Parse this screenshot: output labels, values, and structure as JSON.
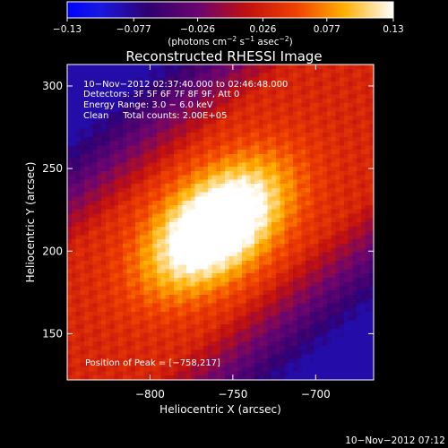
{
  "chart_data": {
    "type": "heatmap",
    "title": "Reconstructed RHESSI Image",
    "xlabel": "Heliocentric X (arcsec)",
    "ylabel": "Heliocentric Y (arcsec)",
    "xlim": [
      -850,
      -665
    ],
    "ylim": [
      122,
      313
    ],
    "x_ticks": [
      -800,
      -750,
      -700
    ],
    "x_tick_labels": [
      "−800",
      "−750",
      "−700"
    ],
    "y_ticks": [
      150,
      200,
      250,
      300
    ],
    "y_tick_labels": [
      "150",
      "200",
      "250",
      "300"
    ],
    "colorbar": {
      "min": -0.13,
      "max": 0.13,
      "ticks": [
        -0.13,
        -0.077,
        -0.026,
        0.026,
        0.077,
        0.13
      ],
      "tick_labels": [
        "−0.13",
        "−0.077",
        "−0.026",
        "0.026",
        "0.077",
        "0.13"
      ],
      "units_parts": [
        "(photons cm",
        "−2",
        " s",
        "−1",
        " asec",
        "−2",
        ")"
      ]
    },
    "annotations": [
      "10−Nov−2012 02:37:40.000 to 02:46:48.000",
      "Detectors: 3F 5F 6F 7F 8F 9F, Att 0",
      "Energy Range: 3.0 − 6.0 keV",
      "Clean     Total counts: 2.00E+05"
    ],
    "peak_label": "Position of Peak = [−758,217]",
    "peak": [
      -758,
      217
    ],
    "peak_value": 0.13,
    "sources": [
      {
        "x": -760,
        "y": 215,
        "amp": 0.155,
        "sigma_major": 34,
        "sigma_minor": 20,
        "angle_deg": 40
      }
    ],
    "background": 0.03,
    "corner_min": -0.085,
    "grid": false
  },
  "timestamp": "10−Nov−2012 07:12"
}
